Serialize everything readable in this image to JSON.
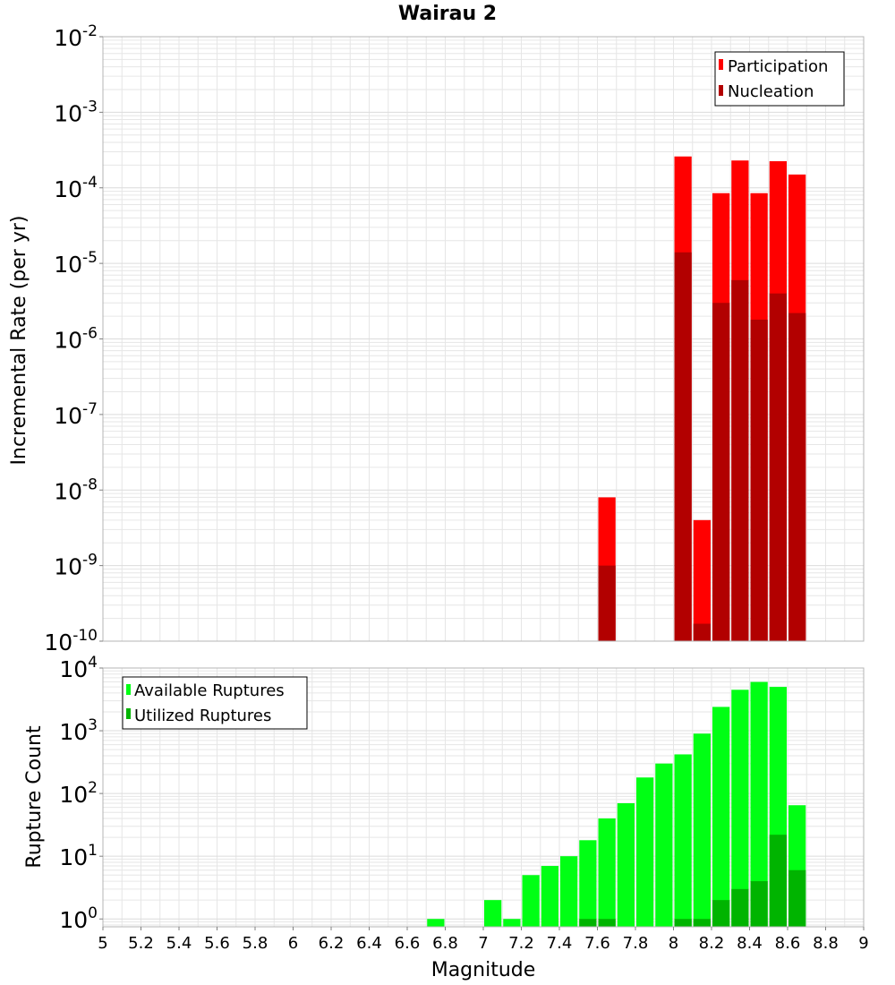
{
  "title": "Wairau 2",
  "xlabel": "Magnitude",
  "x_ticks": [
    "5",
    "5.2",
    "5.4",
    "5.6",
    "5.8",
    "6",
    "6.2",
    "6.4",
    "6.6",
    "6.8",
    "7",
    "7.2",
    "7.4",
    "7.6",
    "7.8",
    "8",
    "8.2",
    "8.4",
    "8.6",
    "8.8",
    "9"
  ],
  "top_ylabel": "Incremental Rate (per yr)",
  "bottom_ylabel": "Rupture Count",
  "top_legend": [
    "Participation",
    "Nucleation"
  ],
  "bottom_legend": [
    "Available Ruptures",
    "Utilized Ruptures"
  ],
  "colors": {
    "participation": "#ff0000",
    "nucleation": "#b20000",
    "available": "#00ff14",
    "utilized": "#00b400",
    "grid": "#e6e6e6",
    "frame": "#b4b4b4"
  },
  "chart_data": [
    {
      "type": "bar",
      "title": "Wairau 2",
      "xlabel": "Magnitude",
      "ylabel": "Incremental Rate (per yr)",
      "xlim": [
        5,
        9
      ],
      "ylim": [
        1e-10,
        0.01
      ],
      "yscale": "log",
      "bin_width": 0.1,
      "ytick_exponents": [
        -2,
        -3,
        -4,
        -5,
        -6,
        -7,
        -8,
        -9,
        -10
      ],
      "grid": true,
      "legend_position": "top-right",
      "x": [
        7.65,
        8.05,
        8.15,
        8.25,
        8.35,
        8.45,
        8.55,
        8.65
      ],
      "series": [
        {
          "name": "Participation",
          "values": [
            8e-09,
            0.00026,
            4e-09,
            8.5e-05,
            0.00023,
            8.5e-05,
            0.000225,
            0.00015
          ]
        },
        {
          "name": "Nucleation",
          "values": [
            1e-09,
            1.4e-05,
            1.7e-10,
            3e-06,
            6e-06,
            1.8e-06,
            4e-06,
            2.2e-06
          ]
        }
      ]
    },
    {
      "type": "bar",
      "xlabel": "Magnitude",
      "ylabel": "Rupture Count",
      "xlim": [
        5,
        9
      ],
      "ylim": [
        0.75,
        10000
      ],
      "yscale": "log",
      "bin_width": 0.1,
      "ytick_exponents": [
        4,
        3,
        2,
        1,
        0
      ],
      "grid": true,
      "legend_position": "top-left",
      "x": [
        6.75,
        7.05,
        7.15,
        7.25,
        7.35,
        7.45,
        7.55,
        7.65,
        7.75,
        7.85,
        7.95,
        8.05,
        8.15,
        8.25,
        8.35,
        8.45,
        8.55,
        8.65
      ],
      "series": [
        {
          "name": "Available Ruptures",
          "values": [
            1,
            2,
            1,
            5,
            7,
            10,
            18,
            40,
            70,
            180,
            300,
            420,
            900,
            2400,
            4500,
            6000,
            5000,
            65
          ]
        },
        {
          "name": "Utilized Ruptures",
          "values": [
            0,
            0,
            0,
            0,
            0,
            0,
            1,
            1,
            0,
            0,
            0,
            1,
            1,
            2,
            3,
            4,
            22,
            6
          ]
        }
      ]
    }
  ]
}
